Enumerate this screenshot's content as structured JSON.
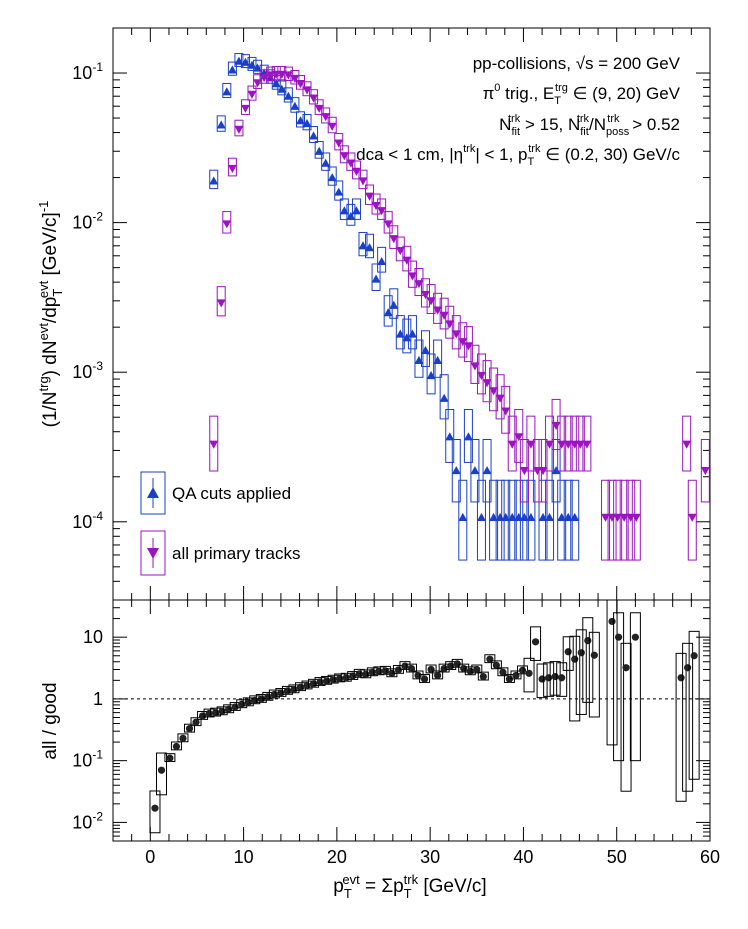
{
  "chart_data": [
    {
      "type": "scatter",
      "panel": "top",
      "ylabel_parts": {
        "a": "(1/N",
        "sup1": "trg",
        "b": ") dN",
        "sup2": "evt",
        "c": "/dp",
        "sub": "T",
        "sup3": "evt",
        "d": " [GeV/c]",
        "sup4": "-1"
      },
      "y_scale": "log",
      "ylim": [
        3e-05,
        0.2
      ],
      "xlim": [
        -4,
        60
      ],
      "y_ticks": [
        {
          "value": 0.1,
          "base": "10",
          "exp": "-1"
        },
        {
          "value": 0.01,
          "base": "10",
          "exp": "-2"
        },
        {
          "value": 0.001,
          "base": "10",
          "exp": "-3"
        },
        {
          "value": 0.0001,
          "base": "10",
          "exp": "-4"
        }
      ],
      "annotations": [
        {
          "id": "a1",
          "text": "pp-collisions, √s = 200 GeV"
        },
        {
          "id": "a2",
          "text": "π⁰ trig., E_T^trg ∈ (9, 20) GeV"
        },
        {
          "id": "a3",
          "text": "N_fit^trk > 15, N_fit^trk/N_poss^trk > 0.52"
        },
        {
          "id": "a4",
          "text": "dca < 1 cm, |η^trk| < 1, p_T^trk ∈ (0.2, 30) GeV/c"
        }
      ],
      "legend": {
        "placement": "bottom-left"
      },
      "series": [
        {
          "name": "QA cuts applied",
          "color": "#1a40c8",
          "marker": "triangle-up",
          "points": [
            [
              6.8,
              0.019
            ],
            [
              7.6,
              0.045
            ],
            [
              8.2,
              0.075
            ],
            [
              8.8,
              0.105
            ],
            [
              9.5,
              0.12
            ],
            [
              10.2,
              0.118
            ],
            [
              10.9,
              0.113
            ],
            [
              11.5,
              0.108
            ],
            [
              12.2,
              0.1
            ],
            [
              12.9,
              0.093
            ],
            [
              13.5,
              0.085
            ],
            [
              14.1,
              0.078
            ],
            [
              14.8,
              0.07
            ],
            [
              15.5,
              0.06
            ],
            [
              16.1,
              0.048
            ],
            [
              16.8,
              0.046
            ],
            [
              17.5,
              0.038
            ],
            [
              18.1,
              0.03
            ],
            [
              18.8,
              0.025
            ],
            [
              19.5,
              0.02
            ],
            [
              20.2,
              0.016
            ],
            [
              20.8,
              0.012
            ],
            [
              21.5,
              0.011
            ],
            [
              22.1,
              0.012
            ],
            [
              22.8,
              0.007
            ],
            [
              23.5,
              0.0068
            ],
            [
              24.2,
              0.0042
            ],
            [
              24.8,
              0.0055
            ],
            [
              25.5,
              0.0025
            ],
            [
              26.1,
              0.0028
            ],
            [
              26.8,
              0.0018
            ],
            [
              27.5,
              0.0017
            ],
            [
              28.1,
              0.0018
            ],
            [
              28.8,
              0.0012
            ],
            [
              29.5,
              0.0014
            ],
            [
              30.1,
              0.00095
            ],
            [
              30.8,
              0.0012
            ],
            [
              31.5,
              0.00067
            ],
            [
              32.1,
              0.00037
            ],
            [
              32.8,
              0.00022
            ],
            [
              33.5,
              0.000107
            ],
            [
              34.1,
              0.00037
            ],
            [
              34.8,
              0.00022
            ],
            [
              35.5,
              0.000107
            ],
            [
              36.1,
              0.00022
            ],
            [
              36.8,
              0.000107
            ],
            [
              37.5,
              0.000107
            ],
            [
              38.1,
              0.000107
            ],
            [
              38.8,
              0.000107
            ],
            [
              39.5,
              0.000107
            ],
            [
              40.1,
              0.000107
            ],
            [
              40.8,
              0.000107
            ],
            [
              42.1,
              0.000107
            ],
            [
              42.8,
              0.000107
            ],
            [
              43.5,
              0.00022
            ],
            [
              44.1,
              0.000107
            ],
            [
              44.8,
              0.000107
            ],
            [
              45.5,
              0.000107
            ]
          ]
        },
        {
          "name": "all primary tracks",
          "color": "#9a14c0",
          "marker": "triangle-down",
          "points": [
            [
              6.8,
              0.00033
            ],
            [
              7.6,
              0.0029
            ],
            [
              8.2,
              0.0098
            ],
            [
              8.8,
              0.023
            ],
            [
              9.5,
              0.042
            ],
            [
              10.2,
              0.058
            ],
            [
              10.9,
              0.072
            ],
            [
              11.5,
              0.086
            ],
            [
              12.2,
              0.093
            ],
            [
              12.9,
              0.097
            ],
            [
              13.5,
              0.098
            ],
            [
              14.1,
              0.098
            ],
            [
              14.8,
              0.097
            ],
            [
              15.5,
              0.092
            ],
            [
              16.1,
              0.085
            ],
            [
              16.8,
              0.077
            ],
            [
              17.5,
              0.068
            ],
            [
              18.1,
              0.058
            ],
            [
              18.8,
              0.051
            ],
            [
              19.5,
              0.044
            ],
            [
              20.2,
              0.034
            ],
            [
              20.8,
              0.028
            ],
            [
              21.5,
              0.025
            ],
            [
              22.1,
              0.022
            ],
            [
              22.8,
              0.019
            ],
            [
              23.5,
              0.015
            ],
            [
              24.2,
              0.013
            ],
            [
              24.8,
              0.012
            ],
            [
              25.5,
              0.0098
            ],
            [
              26.1,
              0.0078
            ],
            [
              26.8,
              0.0065
            ],
            [
              27.5,
              0.0056
            ],
            [
              28.1,
              0.0044
            ],
            [
              28.8,
              0.0039
            ],
            [
              29.5,
              0.0033
            ],
            [
              30.1,
              0.003
            ],
            [
              30.8,
              0.0026
            ],
            [
              31.5,
              0.0024
            ],
            [
              32.1,
              0.0021
            ],
            [
              32.8,
              0.0018
            ],
            [
              33.5,
              0.0016
            ],
            [
              34.1,
              0.0015
            ],
            [
              34.8,
              0.0011
            ],
            [
              35.5,
              0.00095
            ],
            [
              36.1,
              0.00085
            ],
            [
              36.8,
              0.00075
            ],
            [
              37.5,
              0.00067
            ],
            [
              38.1,
              0.00055
            ],
            [
              38.8,
              0.00033
            ],
            [
              39.5,
              0.00037
            ],
            [
              40.1,
              0.00022
            ],
            [
              40.8,
              0.00033
            ],
            [
              41.5,
              0.00022
            ],
            [
              42.1,
              0.00022
            ],
            [
              42.8,
              0.00033
            ],
            [
              43.5,
              0.00044
            ],
            [
              44.1,
              0.00033
            ],
            [
              44.8,
              0.00033
            ],
            [
              45.5,
              0.00033
            ],
            [
              46.1,
              0.00033
            ],
            [
              46.8,
              0.00033
            ],
            [
              48.8,
              0.000107
            ],
            [
              49.5,
              0.000107
            ],
            [
              50.1,
              0.000107
            ],
            [
              50.8,
              0.000107
            ],
            [
              51.5,
              0.000107
            ],
            [
              52.1,
              0.000107
            ],
            [
              57.5,
              0.00033
            ],
            [
              58.1,
              0.000107
            ],
            [
              59.5,
              0.00022
            ]
          ]
        }
      ]
    },
    {
      "type": "scatter",
      "panel": "bottom",
      "ylabel": "all / good",
      "y_scale": "log",
      "ylim": [
        0.005,
        40
      ],
      "xlim": [
        -4,
        60
      ],
      "xlabel_parts": {
        "p": "p",
        "sup1": "evt",
        "sub1": "T",
        "mid": " = Σp",
        "sup2": "trk",
        "sub2": "T",
        "unit": " [GeV/c]"
      },
      "y_ticks": [
        {
          "value": 10,
          "text": "10"
        },
        {
          "value": 1,
          "text": "1"
        },
        {
          "value": 0.1,
          "base": "10",
          "exp": "-1"
        },
        {
          "value": 0.01,
          "base": "10",
          "exp": "-2"
        }
      ],
      "x_ticks": [
        0,
        10,
        20,
        30,
        40,
        50,
        60
      ],
      "reference_line": {
        "y": 1,
        "style": "dashed"
      },
      "series": [
        {
          "name": "",
          "color": "#222222",
          "marker": "circle",
          "points": [
            [
              0.5,
              0.017
            ],
            [
              1.2,
              0.07
            ],
            [
              2.1,
              0.11
            ],
            [
              2.8,
              0.17
            ],
            [
              3.5,
              0.23
            ],
            [
              4.2,
              0.33
            ],
            [
              4.9,
              0.42
            ],
            [
              5.6,
              0.53
            ],
            [
              6.3,
              0.58
            ],
            [
              7.0,
              0.6
            ],
            [
              7.7,
              0.63
            ],
            [
              8.4,
              0.68
            ],
            [
              9.1,
              0.74
            ],
            [
              9.8,
              0.82
            ],
            [
              10.5,
              0.88
            ],
            [
              11.2,
              0.95
            ],
            [
              11.9,
              1.0
            ],
            [
              12.6,
              1.08
            ],
            [
              13.3,
              1.18
            ],
            [
              14.0,
              1.25
            ],
            [
              14.7,
              1.35
            ],
            [
              15.4,
              1.43
            ],
            [
              16.1,
              1.55
            ],
            [
              16.8,
              1.65
            ],
            [
              17.5,
              1.76
            ],
            [
              18.2,
              1.88
            ],
            [
              18.9,
              1.96
            ],
            [
              19.6,
              2.05
            ],
            [
              20.3,
              2.15
            ],
            [
              21.0,
              2.2
            ],
            [
              21.7,
              2.35
            ],
            [
              22.4,
              2.55
            ],
            [
              23.1,
              2.5
            ],
            [
              23.8,
              2.7
            ],
            [
              24.5,
              2.8
            ],
            [
              25.2,
              2.85
            ],
            [
              25.9,
              2.6
            ],
            [
              26.6,
              2.95
            ],
            [
              27.3,
              3.4
            ],
            [
              28.0,
              3.1
            ],
            [
              28.7,
              2.4
            ],
            [
              29.4,
              2.1
            ],
            [
              30.1,
              3.0
            ],
            [
              30.8,
              2.4
            ],
            [
              31.5,
              3.1
            ],
            [
              32.2,
              3.4
            ],
            [
              32.9,
              3.7
            ],
            [
              33.6,
              3.1
            ],
            [
              34.3,
              2.8
            ],
            [
              35.0,
              3.0
            ],
            [
              35.7,
              2.3
            ],
            [
              36.4,
              4.4
            ],
            [
              37.1,
              3.5
            ],
            [
              37.8,
              2.7
            ],
            [
              38.5,
              2.1
            ],
            [
              39.2,
              2.4
            ],
            [
              39.9,
              2.9
            ],
            [
              40.6,
              2.6
            ],
            [
              41.3,
              8.4
            ],
            [
              42.0,
              2.1
            ],
            [
              42.7,
              2.2
            ],
            [
              43.4,
              2.3
            ],
            [
              44.1,
              2.2
            ],
            [
              44.8,
              5.8
            ],
            [
              45.5,
              4.4
            ],
            [
              46.2,
              5.6
            ],
            [
              46.9,
              8.8
            ],
            [
              47.6,
              5.1
            ],
            [
              49.5,
              18.0
            ],
            [
              50.2,
              10.0
            ],
            [
              51.0,
              3.2
            ],
            [
              52.0,
              10.0
            ],
            [
              56.9,
              2.2
            ],
            [
              57.6,
              3.2
            ],
            [
              58.3,
              5.0
            ]
          ]
        }
      ]
    }
  ]
}
